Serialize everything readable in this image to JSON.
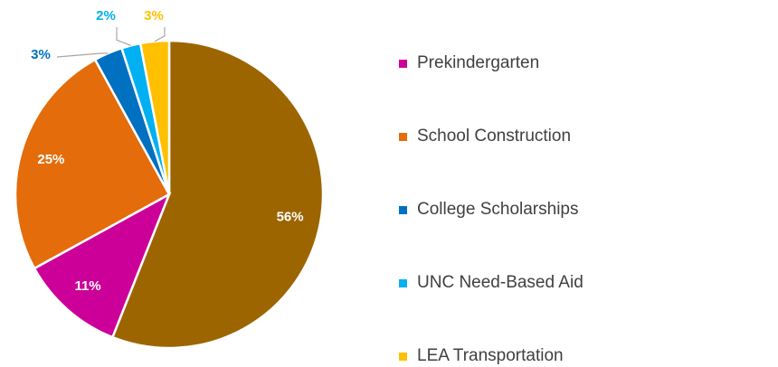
{
  "chart_data": {
    "type": "pie",
    "categories": [
      null,
      "Prekindergarten",
      "School Construction",
      "College Scholarships",
      "UNC Need-Based Aid",
      "LEA Transportation"
    ],
    "values": [
      56,
      11,
      25,
      3,
      2,
      3
    ],
    "value_labels": [
      "56%",
      "11%",
      "25%",
      "3%",
      "2%",
      "3%"
    ],
    "colors": [
      "#9C6500",
      "#CC0099",
      "#E46C0A",
      "#0070C0",
      "#00B0F0",
      "#FFC000"
    ],
    "legend": "right"
  }
}
